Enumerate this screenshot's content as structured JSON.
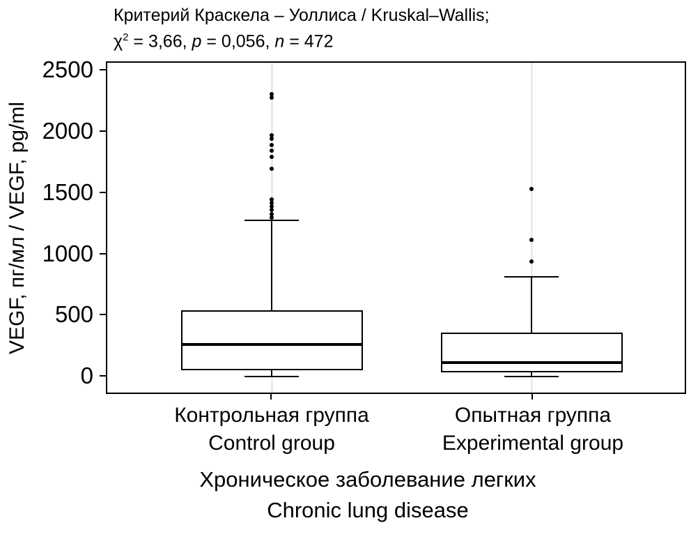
{
  "chart_data": {
    "type": "boxplot",
    "title": {
      "line1": "Критерий Краскела – Уоллиса / Kruskal–Wallis;",
      "stats": {
        "chi_label": "χ",
        "chi_sup": "2",
        "chi_eq": " = 3,66, ",
        "p_label": "p",
        "p_eq": " = 0,056, ",
        "n_label": "n",
        "n_eq": " = 472"
      }
    },
    "ylabel": "VEGF, пг/мл / VEGF, pg/ml",
    "yticks": [
      0,
      500,
      1000,
      1500,
      2000,
      2500
    ],
    "ylim": [
      -125,
      2570
    ],
    "xlabel": {
      "ru": "Хроническое заболевание легких",
      "en": "Chronic lung disease"
    },
    "categories": [
      {
        "ru": "Контрольная группа",
        "en": "Control group"
      },
      {
        "ru": "Опытная группа",
        "en": "Experimental group"
      }
    ],
    "series": [
      {
        "name": "Контрольная группа / Control group",
        "q1": 60,
        "median": 270,
        "q3": 545,
        "whisker_low": 5,
        "whisker_high": 1285,
        "outliers": [
          1305,
          1335,
          1365,
          1395,
          1425,
          1455,
          1705,
          1800,
          1850,
          1900,
          1950,
          1975,
          2285,
          2315
        ]
      },
      {
        "name": "Опытная группа / Experimental group",
        "q1": 40,
        "median": 120,
        "q3": 365,
        "whisker_low": 5,
        "whisker_high": 820,
        "outliers": [
          945,
          1125,
          1540
        ]
      }
    ],
    "layout": {
      "centers": [
        0.285,
        0.735
      ],
      "box_width_frac": 0.315,
      "grid": "category-vlines",
      "legend": "none"
    }
  },
  "colors": {
    "box_stroke": "#000000",
    "box_fill": "#ffffff",
    "gridline": "#c9c9c9",
    "text": "#000000",
    "plot_border": "#000000"
  }
}
